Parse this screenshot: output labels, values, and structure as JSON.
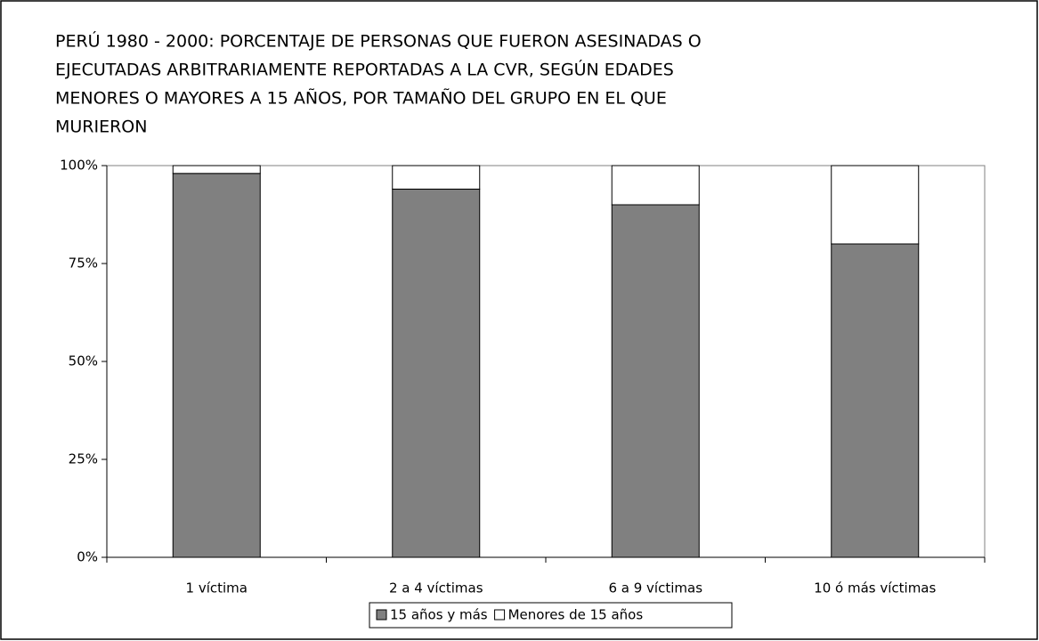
{
  "chart_data": {
    "type": "stacked_bar",
    "title": [
      "PERÚ 1980 - 2000: PORCENTAJE DE PERSONAS QUE FUERON ASESINADAS O",
      "EJECUTADAS ARBITRARIAMENTE REPORTADAS A LA CVR, SEGÚN EDADES",
      "MENORES O MAYORES A 15 AÑOS, POR TAMAÑO DEL GRUPO EN EL QUE",
      "MURIERON"
    ],
    "categories": [
      "1 víctima",
      "2 a 4 víctimas",
      "6 a 9 víctimas",
      "10 ó más víctimas"
    ],
    "series": [
      {
        "name": "15 años y más",
        "color": "#808080",
        "values": [
          98,
          94,
          90,
          80
        ]
      },
      {
        "name": "Menores de 15 años",
        "color": "#ffffff",
        "values": [
          2,
          6,
          10,
          20
        ]
      }
    ],
    "ylim": [
      0,
      100
    ],
    "yticks": [
      {
        "value": 0,
        "label": "0%"
      },
      {
        "value": 25,
        "label": "25%"
      },
      {
        "value": 50,
        "label": "50%"
      },
      {
        "value": 75,
        "label": "75%"
      },
      {
        "value": 100,
        "label": "100%"
      }
    ],
    "legend": "bottom"
  }
}
